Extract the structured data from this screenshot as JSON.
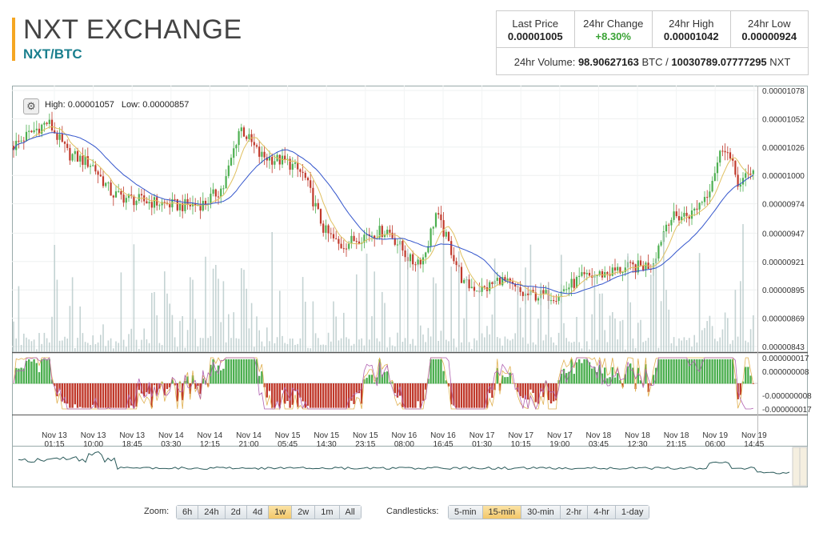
{
  "title": "NXT EXCHANGE",
  "pair": "NXT/BTC",
  "stats": {
    "last_price_label": "Last Price",
    "last_price": "0.00001005",
    "change_label": "24hr Change",
    "change": "+8.30%",
    "high_label": "24hr High",
    "high": "0.00001042",
    "low_label": "24hr Low",
    "low": "0.00000924",
    "volume_label": "24hr Volume:",
    "volume_btc": "98.90627163",
    "volume_btc_unit": "BTC /",
    "volume_nxt": "10030789.07777295",
    "volume_nxt_unit": "NXT"
  },
  "chart": {
    "high_text": "High: 0.00001057",
    "low_text": "Low: 0.00000857",
    "price_ticks": [
      "0.00001078",
      "0.00001052",
      "0.00001026",
      "0.00001000",
      "0.00000974",
      "0.00000947",
      "0.00000921",
      "0.00000895",
      "0.00000869",
      "0.00000843"
    ],
    "macd_ticks": [
      "0.000000017",
      "0.000000008",
      "-0.000000008",
      "-0.000000017"
    ],
    "time_ticks": [
      {
        "d": "Nov 13",
        "t": "01:15"
      },
      {
        "d": "Nov 13",
        "t": "10:00"
      },
      {
        "d": "Nov 13",
        "t": "18:45"
      },
      {
        "d": "Nov 14",
        "t": "03:30"
      },
      {
        "d": "Nov 14",
        "t": "12:15"
      },
      {
        "d": "Nov 14",
        "t": "21:00"
      },
      {
        "d": "Nov 15",
        "t": "05:45"
      },
      {
        "d": "Nov 15",
        "t": "14:30"
      },
      {
        "d": "Nov 15",
        "t": "23:15"
      },
      {
        "d": "Nov 16",
        "t": "08:00"
      },
      {
        "d": "Nov 16",
        "t": "16:45"
      },
      {
        "d": "Nov 17",
        "t": "01:30"
      },
      {
        "d": "Nov 17",
        "t": "10:15"
      },
      {
        "d": "Nov 17",
        "t": "19:00"
      },
      {
        "d": "Nov 18",
        "t": "03:45"
      },
      {
        "d": "Nov 18",
        "t": "12:30"
      },
      {
        "d": "Nov 18",
        "t": "21:15"
      },
      {
        "d": "Nov 19",
        "t": "06:00"
      },
      {
        "d": "Nov 19",
        "t": "14:45"
      }
    ],
    "colors": {
      "up": "#4caf50",
      "down": "#c0392b",
      "ma_fast": "#e0c060",
      "ma_slow": "#3355cc",
      "volume": "#b5c8c8"
    }
  },
  "zoom": {
    "label": "Zoom:",
    "options": [
      "6h",
      "24h",
      "2d",
      "4d",
      "1w",
      "2w",
      "1m",
      "All"
    ],
    "selected": "1w"
  },
  "candles": {
    "label": "Candlesticks:",
    "options": [
      "5-min",
      "15-min",
      "30-min",
      "2-hr",
      "4-hr",
      "1-day"
    ],
    "selected": "15-min"
  }
}
